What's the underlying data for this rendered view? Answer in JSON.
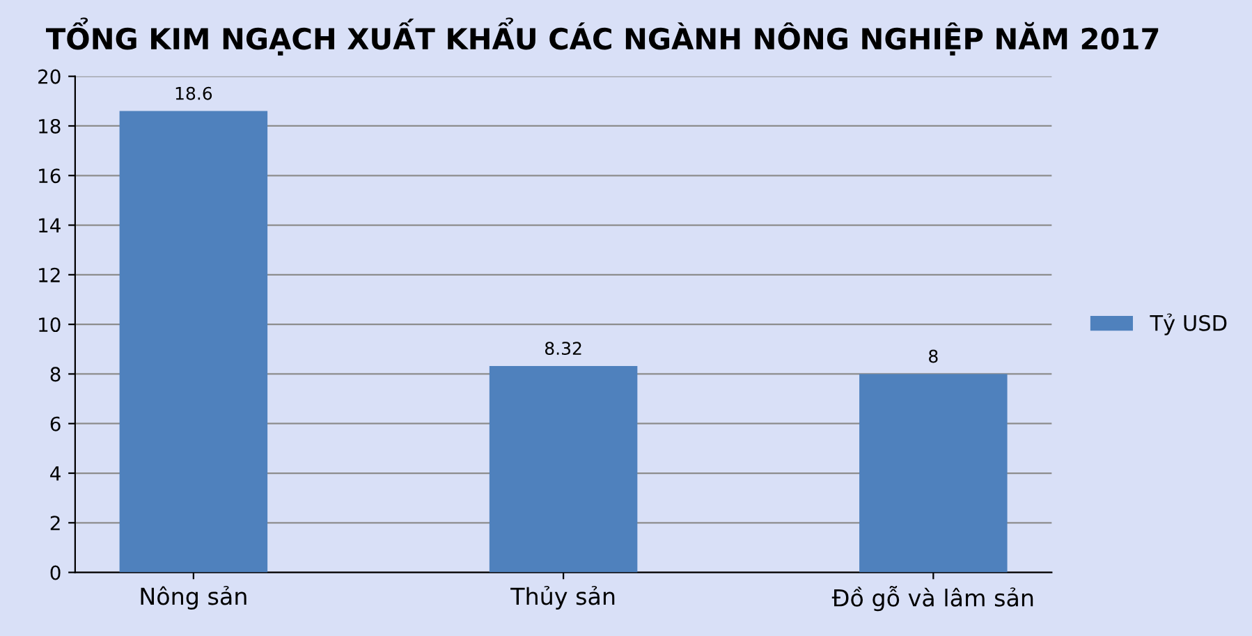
{
  "chart_data": {
    "type": "bar",
    "title": "TỔNG KIM NGẠCH XUẤT KHẨU CÁC NGÀNH NÔNG NGHIỆP NĂM 2017",
    "categories": [
      "Nông sản",
      "Thủy sản",
      "Đồ gỗ và lâm sản"
    ],
    "series": [
      {
        "name": "Tỷ USD",
        "color": "#4f81bd",
        "values": [
          18.6,
          8.32,
          8
        ]
      }
    ],
    "ylim": [
      0,
      20
    ],
    "yticks": [
      0,
      2,
      4,
      6,
      8,
      10,
      12,
      14,
      16,
      18,
      20
    ],
    "grid": "y",
    "legend": "right",
    "data_labels": true
  }
}
